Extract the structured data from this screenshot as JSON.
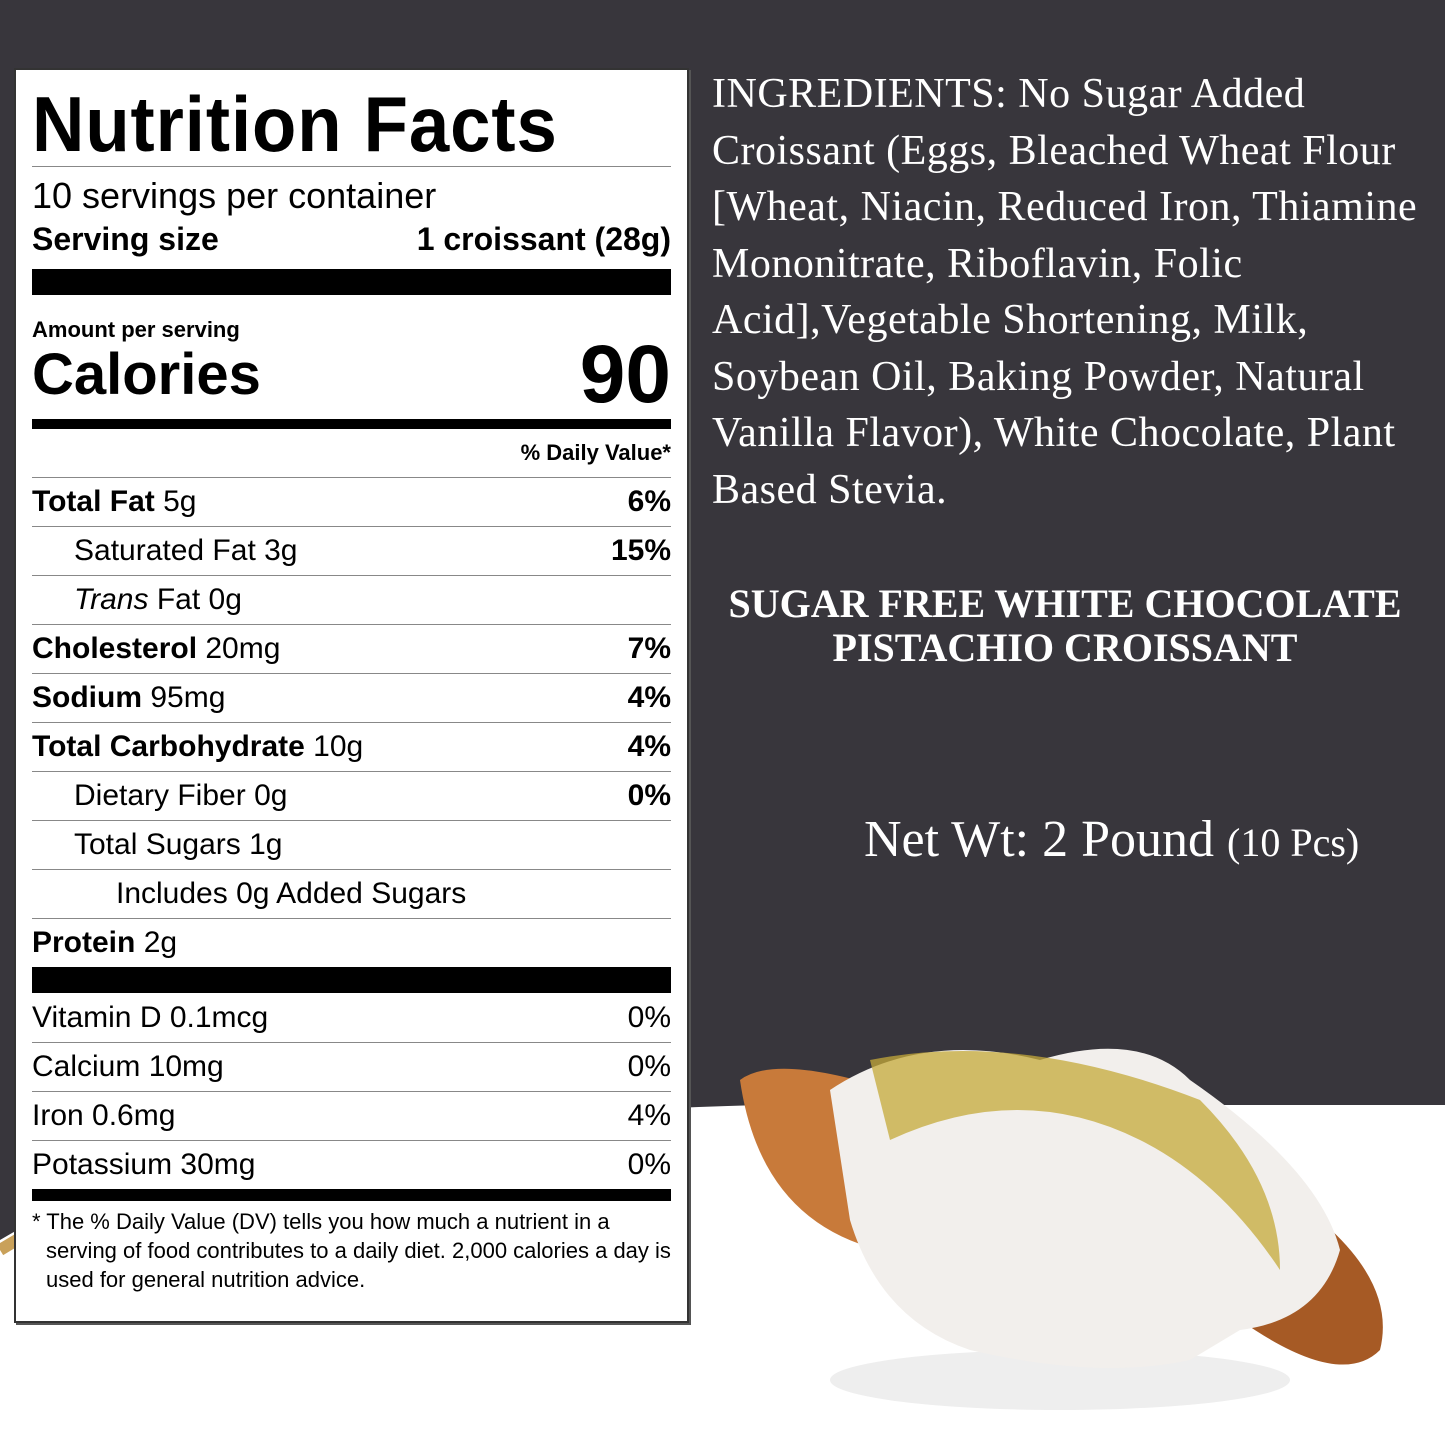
{
  "colors": {
    "background_dark": "#38363c",
    "accent_gold": "#c9a15a",
    "text_light": "#ffffff"
  },
  "nutrition": {
    "title": "Nutrition Facts",
    "servings": "10 servings per container",
    "serving_size_label": "Serving size",
    "serving_size_value": "1 croissant (28g)",
    "amount_per_serving": "Amount per serving",
    "calories_label": "Calories",
    "calories_value": "90",
    "daily_value_header": "% Daily Value*",
    "rows": [
      {
        "name": "Total Fat",
        "amount": "5g",
        "dv": "6%"
      },
      {
        "name": "Saturated Fat",
        "amount": "3g",
        "dv": "15%"
      },
      {
        "name": "Trans",
        "name_rest": "Fat",
        "amount": "0g",
        "dv": ""
      },
      {
        "name": "Cholesterol",
        "amount": "20mg",
        "dv": "7%"
      },
      {
        "name": "Sodium",
        "amount": "95mg",
        "dv": "4%"
      },
      {
        "name": "Total Carbohydrate",
        "amount": "10g",
        "dv": "4%"
      },
      {
        "name": "Dietary Fiber",
        "amount": "0g",
        "dv": "0%"
      },
      {
        "name": "Total Sugars",
        "amount": "1g",
        "dv": ""
      },
      {
        "name": "Includes 0g Added Sugars",
        "amount": "",
        "dv": ""
      },
      {
        "name": "Protein",
        "amount": "2g",
        "dv": ""
      }
    ],
    "vitamins": [
      {
        "label": "Vitamin D 0.1mcg",
        "dv": "0%"
      },
      {
        "label": "Calcium 10mg",
        "dv": "0%"
      },
      {
        "label": "Iron 0.6mg",
        "dv": "4%"
      },
      {
        "label": "Potassium 30mg",
        "dv": "0%"
      }
    ],
    "footnote": "* The % Daily Value (DV) tells you how much a nutrient in a serving of food contributes to a daily diet. 2,000 calories a day is used for general nutrition advice."
  },
  "ingredients": "INGREDIENTS: No Sugar Added Croissant (Eggs, Bleached Wheat Flour [Wheat, Niacin, Reduced Iron, Thiamine Mononitrate, Riboflavin, Folic Acid],Vegetable Shortening, Milk, Soybean Oil, Baking Powder, Natural Vanilla Flavor), White Chocolate, Plant Based Stevia.",
  "product_name_line1": "SUGAR FREE WHITE CHOCOLATE",
  "product_name_line2": "PISTACHIO CROISSANT",
  "net_weight": "Net Wt: 2 Pound",
  "net_count": "(10 Pcs)"
}
